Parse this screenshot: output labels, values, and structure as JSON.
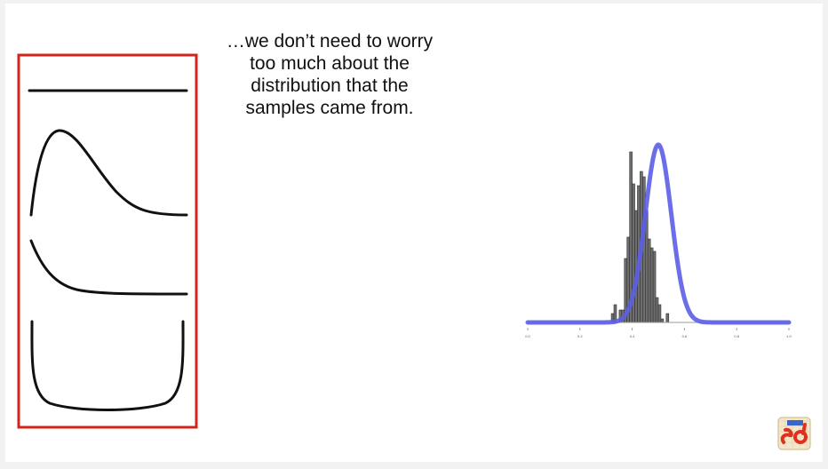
{
  "caption": {
    "line1": "…we don’t need to worry",
    "line2": "too much about the",
    "line3": "distribution that the",
    "line4": "samples came from."
  },
  "colors": {
    "frame": "#d0241c",
    "curve": "#111111",
    "normal_curve": "#5b5ee6",
    "bars": "#6e6e6e"
  },
  "chart_data": {
    "type": "bar",
    "title": "",
    "xlabel": "",
    "ylabel": "",
    "xlim": [
      0.0,
      1.0
    ],
    "x_ticks": [
      "0.0",
      "0.2",
      "0.4",
      "0.6",
      "0.8",
      "1.0"
    ],
    "bin_width": 0.01,
    "bins": [
      [
        0.32,
        0.05
      ],
      [
        0.33,
        0.1
      ],
      [
        0.35,
        0.07
      ],
      [
        0.36,
        0.07
      ],
      [
        0.37,
        0.36
      ],
      [
        0.38,
        0.48
      ],
      [
        0.39,
        0.96
      ],
      [
        0.4,
        0.78
      ],
      [
        0.41,
        0.63
      ],
      [
        0.42,
        0.77
      ],
      [
        0.43,
        0.85
      ],
      [
        0.44,
        0.82
      ],
      [
        0.45,
        0.63
      ],
      [
        0.46,
        0.47
      ],
      [
        0.47,
        0.42
      ],
      [
        0.48,
        0.4
      ],
      [
        0.49,
        0.14
      ],
      [
        0.5,
        0.1
      ],
      [
        0.51,
        0.02
      ],
      [
        0.53,
        0.05
      ]
    ],
    "overlay": {
      "type": "normal",
      "mean": 0.5,
      "sd": 0.05
    }
  }
}
